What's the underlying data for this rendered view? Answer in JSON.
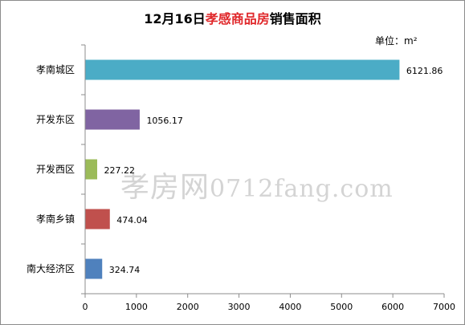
{
  "title": {
    "prefix": "12月16日",
    "highlight": "孝感商品房",
    "suffix": "销售面积"
  },
  "unit_label": "单位：m²",
  "watermark": {
    "mark": "孝房网",
    "domain": "0712fang.com"
  },
  "colors": {
    "axis": "#8c8c8c",
    "title_highlight": "#e0282b"
  },
  "chart_data": {
    "type": "bar",
    "orientation": "horizontal",
    "categories": [
      "孝南城区",
      "开发东区",
      "开发西区",
      "孝南乡镇",
      "南大经济区"
    ],
    "values": [
      6121.86,
      1056.17,
      227.22,
      474.04,
      324.74
    ],
    "value_labels": [
      "6121.86",
      "1056.17",
      "227.22",
      "474.04",
      "324.74"
    ],
    "bar_colors": [
      "#4bacc6",
      "#8064a2",
      "#9bbb59",
      "#c0504d",
      "#4f81bd"
    ],
    "xlim": [
      0,
      7000
    ],
    "x_ticks": [
      0,
      1000,
      2000,
      3000,
      4000,
      5000,
      6000,
      7000
    ],
    "title": "12月16日孝感商品房销售面积",
    "xlabel": "",
    "ylabel": "",
    "grid": false,
    "legend": "none"
  }
}
